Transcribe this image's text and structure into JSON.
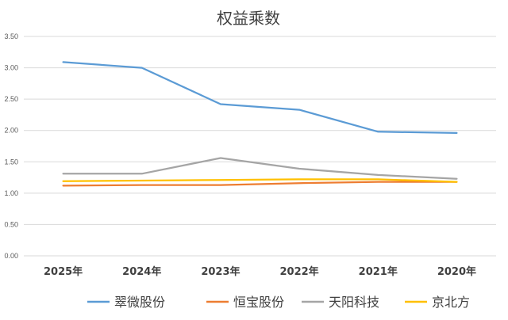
{
  "chart_data": {
    "type": "line",
    "title": "权益乘数",
    "categories": [
      "2025年",
      "2024年",
      "2023年",
      "2022年",
      "2021年",
      "2020年"
    ],
    "ylim": [
      0,
      3.5
    ],
    "yticks": [
      "0.00",
      "0.50",
      "1.00",
      "1.50",
      "2.00",
      "2.50",
      "3.00",
      "3.50"
    ],
    "grid": true,
    "legend_position": "bottom",
    "series": [
      {
        "name": "翠微股份",
        "color": "#5b9bd5",
        "values": [
          3.09,
          3.0,
          2.42,
          2.33,
          1.98,
          1.96
        ]
      },
      {
        "name": "恒宝股份",
        "color": "#ed7d31",
        "values": [
          1.12,
          1.13,
          1.13,
          1.16,
          1.18,
          1.18
        ]
      },
      {
        "name": "天阳科技",
        "color": "#a5a5a5",
        "values": [
          1.31,
          1.31,
          1.56,
          1.39,
          1.29,
          1.23
        ]
      },
      {
        "name": "京北方",
        "color": "#ffc000",
        "values": [
          1.19,
          1.2,
          1.21,
          1.22,
          1.22,
          1.18
        ]
      }
    ]
  }
}
